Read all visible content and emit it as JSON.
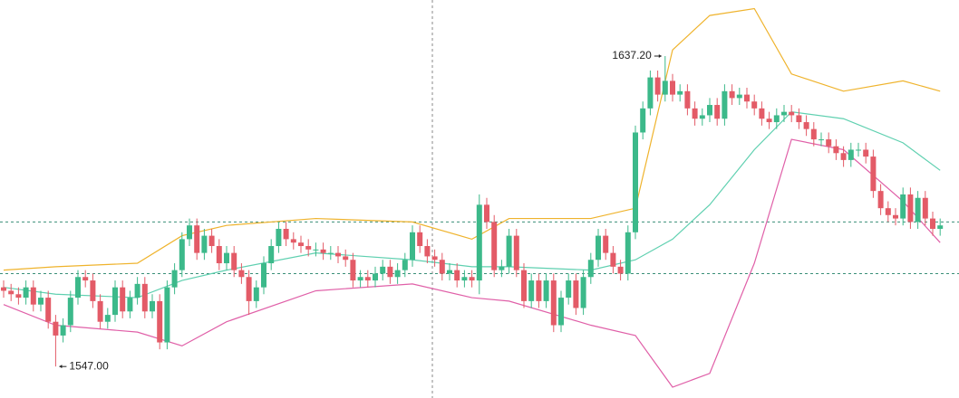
{
  "chart_data": {
    "type": "candlestick",
    "up_color": "#3cb98a",
    "down_color": "#e35b67",
    "open": [
      1570,
      1569,
      1568,
      1567,
      1570,
      1565,
      1567,
      1560,
      1556,
      1559,
      1567,
      1573,
      1572,
      1566,
      1560,
      1562,
      1570,
      1563,
      1567,
      1571,
      1563,
      1566,
      1554,
      1570,
      1575,
      1584,
      1588,
      1580,
      1585,
      1582,
      1577,
      1580,
      1575,
      1573,
      1566,
      1570,
      1577,
      1582,
      1587,
      1584,
      1583,
      1582,
      1581,
      1581,
      1580,
      1580,
      1579,
      1578,
      1572,
      1573,
      1572,
      1574,
      1576,
      1573,
      1575,
      1578,
      1586,
      1582,
      1579,
      1578,
      1574,
      1575,
      1572,
      1573,
      1572,
      1594,
      1589,
      1575,
      1576,
      1585,
      1575,
      1566,
      1572,
      1566,
      1572,
      1559,
      1567,
      1572,
      1564,
      1573,
      1578,
      1585,
      1580,
      1576,
      1574,
      1586,
      1615,
      1622,
      1631,
      1626,
      1630,
      1626,
      1627,
      1622,
      1619,
      1620,
      1623,
      1619,
      1627,
      1625,
      1626,
      1624,
      1622,
      1619,
      1618,
      1620,
      1621,
      1620,
      1618,
      1616,
      1613,
      1613,
      1611,
      1609,
      1607,
      1610,
      1610,
      1608,
      1598,
      1593,
      1591,
      1590,
      1597,
      1589,
      1596,
      1590,
      1587
    ],
    "high": [
      1572,
      1571,
      1570,
      1572,
      1572,
      1569,
      1569,
      1562,
      1561,
      1569,
      1575,
      1575,
      1574,
      1568,
      1564,
      1572,
      1572,
      1569,
      1573,
      1573,
      1568,
      1568,
      1572,
      1577,
      1586,
      1590,
      1590,
      1587,
      1587,
      1584,
      1582,
      1582,
      1577,
      1575,
      1572,
      1579,
      1584,
      1589,
      1589,
      1586,
      1585,
      1584,
      1583,
      1583,
      1582,
      1582,
      1581,
      1580,
      1575,
      1575,
      1576,
      1578,
      1578,
      1577,
      1580,
      1588,
      1588,
      1584,
      1581,
      1580,
      1577,
      1577,
      1575,
      1575,
      1597,
      1596,
      1591,
      1578,
      1587,
      1587,
      1577,
      1574,
      1574,
      1574,
      1574,
      1569,
      1574,
      1574,
      1575,
      1580,
      1587,
      1587,
      1582,
      1578,
      1588,
      1617,
      1624,
      1633,
      1633,
      1637.2,
      1632,
      1629,
      1629,
      1624,
      1622,
      1625,
      1625,
      1629,
      1629,
      1628,
      1628,
      1626,
      1624,
      1621,
      1622,
      1623,
      1623,
      1622,
      1620,
      1618,
      1615,
      1615,
      1613,
      1611,
      1612,
      1612,
      1612,
      1610,
      1600,
      1595,
      1593,
      1599,
      1599,
      1598,
      1598,
      1592,
      1590
    ],
    "low": [
      1567,
      1566,
      1565,
      1565,
      1563,
      1563,
      1558,
      1547,
      1554,
      1557,
      1565,
      1570,
      1564,
      1558,
      1558,
      1560,
      1561,
      1561,
      1565,
      1561,
      1561,
      1552,
      1552,
      1568,
      1573,
      1582,
      1578,
      1578,
      1580,
      1575,
      1575,
      1573,
      1571,
      1562,
      1564,
      1568,
      1575,
      1580,
      1582,
      1581,
      1580,
      1579,
      1579,
      1578,
      1578,
      1577,
      1576,
      1570,
      1570,
      1570,
      1570,
      1572,
      1571,
      1571,
      1573,
      1576,
      1580,
      1577,
      1576,
      1572,
      1572,
      1570,
      1570,
      1570,
      1568,
      1587,
      1573,
      1573,
      1574,
      1573,
      1564,
      1564,
      1564,
      1564,
      1557,
      1557,
      1565,
      1562,
      1562,
      1571,
      1576,
      1578,
      1574,
      1572,
      1572,
      1584,
      1613,
      1620,
      1624,
      1624,
      1624,
      1624,
      1620,
      1617,
      1617,
      1618,
      1617,
      1617,
      1623,
      1623,
      1622,
      1620,
      1617,
      1616,
      1616,
      1618,
      1618,
      1616,
      1614,
      1611,
      1611,
      1609,
      1607,
      1605,
      1605,
      1608,
      1606,
      1596,
      1591,
      1589,
      1588,
      1588,
      1587,
      1587,
      1588,
      1585,
      1585
    ],
    "close": [
      1569,
      1568,
      1567,
      1570,
      1565,
      1567,
      1560,
      1556,
      1559,
      1567,
      1573,
      1572,
      1566,
      1560,
      1562,
      1570,
      1563,
      1567,
      1571,
      1563,
      1566,
      1554,
      1570,
      1575,
      1584,
      1588,
      1580,
      1585,
      1582,
      1577,
      1580,
      1575,
      1573,
      1566,
      1570,
      1577,
      1582,
      1587,
      1584,
      1583,
      1582,
      1581,
      1581,
      1580,
      1580,
      1579,
      1578,
      1572,
      1573,
      1572,
      1574,
      1576,
      1573,
      1575,
      1578,
      1586,
      1582,
      1579,
      1578,
      1574,
      1575,
      1572,
      1573,
      1572,
      1594,
      1589,
      1575,
      1576,
      1585,
      1575,
      1566,
      1572,
      1566,
      1572,
      1559,
      1567,
      1572,
      1564,
      1573,
      1578,
      1585,
      1580,
      1576,
      1574,
      1586,
      1615,
      1622,
      1631,
      1626,
      1630,
      1626,
      1627,
      1622,
      1619,
      1620,
      1623,
      1619,
      1627,
      1625,
      1626,
      1624,
      1622,
      1619,
      1618,
      1620,
      1621,
      1620,
      1618,
      1616,
      1613,
      1613,
      1611,
      1609,
      1607,
      1610,
      1610,
      1608,
      1598,
      1593,
      1591,
      1590,
      1597,
      1589,
      1596,
      1590,
      1587,
      1588
    ],
    "bands": [
      {
        "color": "#efb32c",
        "x": [
          0,
          7,
          18,
          24,
          30,
          42,
          55,
          63,
          68,
          79,
          85,
          90,
          95,
          101,
          106,
          113,
          121,
          126
        ],
        "values": [
          1575,
          1576,
          1577,
          1585,
          1588,
          1590,
          1589,
          1584,
          1590,
          1590,
          1593,
          1639,
          1649,
          1651,
          1632,
          1627,
          1630,
          1627
        ]
      },
      {
        "color": "#5fd0b0",
        "x": [
          0,
          7,
          18,
          24,
          30,
          42,
          55,
          63,
          68,
          79,
          85,
          90,
          95,
          101,
          106,
          113,
          121,
          126
        ],
        "values": [
          1570,
          1568,
          1567,
          1572,
          1575,
          1580,
          1578,
          1576,
          1576,
          1575,
          1578,
          1584,
          1594,
          1610,
          1621,
          1619,
          1612,
          1604
        ]
      },
      {
        "color": "#e060a8",
        "x": [
          0,
          7,
          18,
          24,
          30,
          42,
          55,
          63,
          68,
          79,
          85,
          90,
          95,
          101,
          106,
          113,
          121,
          126
        ],
        "values": [
          1565,
          1559,
          1557,
          1553,
          1560,
          1569,
          1571,
          1567,
          1566,
          1559,
          1556,
          1541,
          1545,
          1577,
          1613,
          1610,
          1595,
          1583
        ]
      }
    ],
    "price_lines": [
      1589,
      1574
    ],
    "annotations": [
      {
        "text": "1637.20",
        "index": 89,
        "value": 1637.2,
        "side": "left"
      },
      {
        "text": "1547.00",
        "index": 7,
        "value": 1547,
        "side": "right"
      }
    ]
  }
}
